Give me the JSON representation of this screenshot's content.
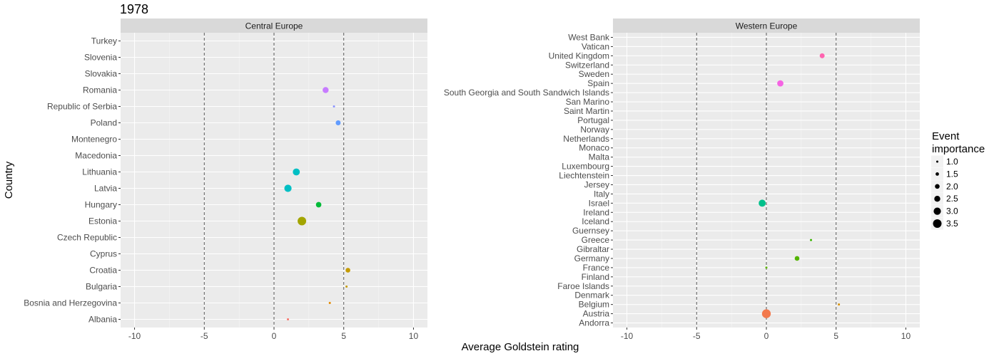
{
  "chart_data": {
    "type": "scatter",
    "title": "1978",
    "xlabel": "Average Goldstein rating",
    "ylabel": "Country",
    "xlim": [
      -11,
      11
    ],
    "xticks": [
      -10,
      -5,
      0,
      5,
      10
    ],
    "reference_lines": [
      -5,
      0,
      5
    ],
    "grid": true,
    "legend": {
      "title_line1": "Event",
      "title_line2": "importance",
      "placement": "right",
      "size_levels": [
        "1.0",
        "1.5",
        "2.0",
        "2.5",
        "3.0",
        "3.5"
      ]
    },
    "panels": [
      {
        "name": "Central Europe",
        "countries": [
          "Albania",
          "Bosnia and Herzegovina",
          "Bulgaria",
          "Croatia",
          "Cyprus",
          "Czech Republic",
          "Estonia",
          "Hungary",
          "Latvia",
          "Lithuania",
          "Macedonia",
          "Montenegro",
          "Poland",
          "Republic of Serbia",
          "Romania",
          "Slovakia",
          "Slovenia",
          "Turkey"
        ],
        "points": [
          {
            "country": "Albania",
            "x": 1.0,
            "importance": 1.0,
            "color": "#F8766D"
          },
          {
            "country": "Bosnia and Herzegovina",
            "x": 4.0,
            "importance": 1.0,
            "color": "#E38900"
          },
          {
            "country": "Bulgaria",
            "x": 5.2,
            "importance": 1.0,
            "color": "#C49A00"
          },
          {
            "country": "Croatia",
            "x": 5.3,
            "importance": 2.0,
            "color": "#C49A00"
          },
          {
            "country": "Estonia",
            "x": 2.0,
            "importance": 3.5,
            "color": "#A3A500"
          },
          {
            "country": "Hungary",
            "x": 3.2,
            "importance": 2.3,
            "color": "#00BA38"
          },
          {
            "country": "Latvia",
            "x": 1.0,
            "importance": 3.0,
            "color": "#00BFC4"
          },
          {
            "country": "Lithuania",
            "x": 1.6,
            "importance": 2.9,
            "color": "#00BFC4"
          },
          {
            "country": "Poland",
            "x": 4.6,
            "importance": 2.1,
            "color": "#619CFF"
          },
          {
            "country": "Republic of Serbia",
            "x": 4.3,
            "importance": 1.0,
            "color": "#8B93FF"
          },
          {
            "country": "Romania",
            "x": 3.7,
            "importance": 2.5,
            "color": "#C77CFF"
          }
        ]
      },
      {
        "name": "Western Europe",
        "countries": [
          "Andorra",
          "Austria",
          "Belgium",
          "Denmark",
          "Faroe Islands",
          "Finland",
          "France",
          "Germany",
          "Gibraltar",
          "Greece",
          "Guernsey",
          "Iceland",
          "Ireland",
          "Israel",
          "Italy",
          "Jersey",
          "Liechtenstein",
          "Luxembourg",
          "Malta",
          "Monaco",
          "Netherlands",
          "Norway",
          "Portugal",
          "Saint Martin",
          "San Marino",
          "South Georgia and South Sandwich Islands",
          "Spain",
          "Sweden",
          "Switzerland",
          "United Kingdom",
          "Vatican",
          "West Bank"
        ],
        "points": [
          {
            "country": "Austria",
            "x": 0.0,
            "importance": 3.6,
            "color": "#F2794D"
          },
          {
            "country": "Belgium",
            "x": 5.2,
            "importance": 1.0,
            "color": "#D89000"
          },
          {
            "country": "France",
            "x": 0.0,
            "importance": 1.0,
            "color": "#5BB300"
          },
          {
            "country": "Germany",
            "x": 2.2,
            "importance": 2.0,
            "color": "#53B400"
          },
          {
            "country": "Greece",
            "x": 3.2,
            "importance": 1.0,
            "color": "#39B600"
          },
          {
            "country": "Israel",
            "x": -0.3,
            "importance": 2.9,
            "color": "#00C08B"
          },
          {
            "country": "Spain",
            "x": 1.0,
            "importance": 2.6,
            "color": "#F564E3"
          },
          {
            "country": "United Kingdom",
            "x": 4.0,
            "importance": 2.1,
            "color": "#FF64B0"
          }
        ]
      }
    ]
  }
}
